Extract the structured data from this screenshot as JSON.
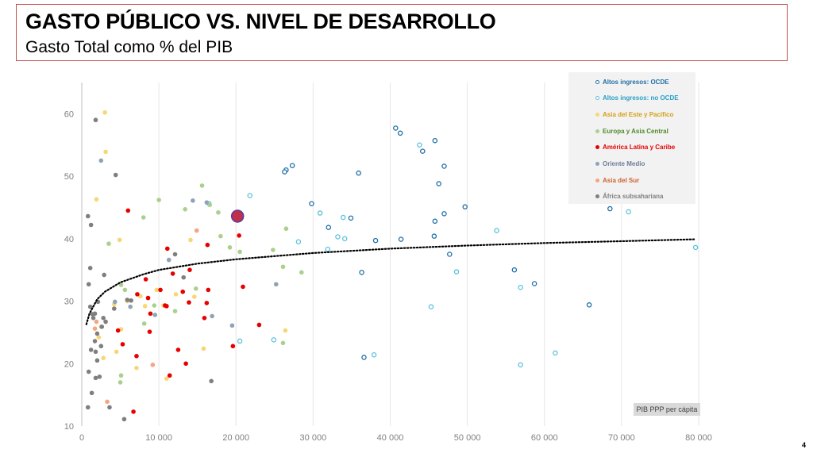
{
  "header": {
    "title": "GASTO PÚBLICO VS. NIVEL DE DESARROLLO",
    "subtitle": "Gasto Total como % del PIB"
  },
  "page_number": "4",
  "chart_data": {
    "type": "scatter",
    "title": "GASTO PÚBLICO VS. NIVEL DE DESARROLLO",
    "subtitle": "Gasto Total como % del PIB",
    "xlabel": "PIB PPP per cápita",
    "ylabel": "",
    "xlim": [
      0,
      80000
    ],
    "ylim": [
      10,
      65
    ],
    "x_ticks": [
      0,
      10000,
      20000,
      30000,
      40000,
      50000,
      60000,
      70000,
      80000
    ],
    "x_tick_labels": [
      "0",
      "10 000",
      "20 000",
      "30 000",
      "40 000",
      "50 000",
      "60 000",
      "70 000",
      "80 000"
    ],
    "y_ticks": [
      10,
      20,
      30,
      40,
      50,
      60
    ],
    "y_tick_labels": [
      "10",
      "20",
      "30",
      "40",
      "50",
      "60"
    ],
    "grid": {
      "vertical": true,
      "horizontal": false
    },
    "legend_position": "top-right",
    "trendline": {
      "type": "logarithmic",
      "style": "dotted",
      "points": [
        [
          600,
          26.3
        ],
        [
          1000,
          28.0
        ],
        [
          2000,
          30.3
        ],
        [
          3000,
          31.5
        ],
        [
          5000,
          33.0
        ],
        [
          8000,
          34.3
        ],
        [
          10000,
          35.0
        ],
        [
          15000,
          36.0
        ],
        [
          20000,
          36.7
        ],
        [
          30000,
          37.7
        ],
        [
          40000,
          38.4
        ],
        [
          50000,
          38.9
        ],
        [
          60000,
          39.3
        ],
        [
          70000,
          39.6
        ],
        [
          79500,
          39.9
        ]
      ]
    },
    "highlight": {
      "x": 20200,
      "y": 43.6,
      "color": "#c0304a"
    },
    "series": [
      {
        "name": "Altos ingresos: OCDE",
        "color": "#1f6fa8",
        "marker": "ring",
        "points": [
          [
            26500,
            51.0
          ],
          [
            26300,
            50.7
          ],
          [
            27300,
            51.7
          ],
          [
            29800,
            45.6
          ],
          [
            32000,
            41.8
          ],
          [
            34900,
            43.3
          ],
          [
            35900,
            50.5
          ],
          [
            36300,
            34.6
          ],
          [
            36600,
            21.0
          ],
          [
            38100,
            39.7
          ],
          [
            40700,
            57.7
          ],
          [
            41300,
            56.9
          ],
          [
            41400,
            39.9
          ],
          [
            44200,
            54.0
          ],
          [
            45800,
            55.7
          ],
          [
            46300,
            48.8
          ],
          [
            47000,
            51.6
          ],
          [
            45800,
            42.8
          ],
          [
            45700,
            40.4
          ],
          [
            47000,
            44.0
          ],
          [
            47700,
            37.5
          ],
          [
            49700,
            45.1
          ],
          [
            56100,
            35.0
          ],
          [
            58700,
            32.8
          ],
          [
            65800,
            29.4
          ],
          [
            68500,
            44.8
          ]
        ]
      },
      {
        "name": "Altos ingresos: no OCDE",
        "color": "#5bc0de",
        "marker": "ring",
        "points": [
          [
            16500,
            45.6
          ],
          [
            21800,
            46.9
          ],
          [
            20500,
            23.6
          ],
          [
            24900,
            23.8
          ],
          [
            28100,
            39.5
          ],
          [
            30900,
            44.1
          ],
          [
            31900,
            38.3
          ],
          [
            33200,
            40.3
          ],
          [
            33900,
            43.4
          ],
          [
            34100,
            40.0
          ],
          [
            37900,
            21.4
          ],
          [
            43800,
            55.0
          ],
          [
            45300,
            29.1
          ],
          [
            48600,
            34.7
          ],
          [
            53800,
            41.3
          ],
          [
            56900,
            32.2
          ],
          [
            56900,
            19.8
          ],
          [
            61400,
            21.7
          ],
          [
            70900,
            44.3
          ],
          [
            79600,
            38.6
          ]
        ]
      },
      {
        "name": "Asia del Este y Pacífico",
        "color": "#f7d774",
        "marker": "dot",
        "points": [
          [
            3000,
            60.2
          ],
          [
            3100,
            53.9
          ],
          [
            1900,
            46.3
          ],
          [
            2500,
            25.9
          ],
          [
            2200,
            24.2
          ],
          [
            2800,
            20.9
          ],
          [
            4200,
            29.5
          ],
          [
            5100,
            25.5
          ],
          [
            4500,
            21.9
          ],
          [
            4900,
            39.8
          ],
          [
            5900,
            30.0
          ],
          [
            7100,
            19.3
          ],
          [
            7600,
            30.8
          ],
          [
            8200,
            29.2
          ],
          [
            9700,
            31.8
          ],
          [
            10600,
            29.3
          ],
          [
            11000,
            17.6
          ],
          [
            12200,
            31.1
          ],
          [
            14100,
            39.8
          ],
          [
            14600,
            30.7
          ],
          [
            15800,
            22.4
          ],
          [
            26400,
            25.3
          ]
        ]
      },
      {
        "name": "Europa y Asia Central",
        "color": "#a9d18e",
        "marker": "dot",
        "points": [
          [
            3500,
            39.2
          ],
          [
            5100,
            32.6
          ],
          [
            5100,
            18.1
          ],
          [
            5600,
            31.8
          ],
          [
            5000,
            17.0
          ],
          [
            8000,
            43.4
          ],
          [
            8100,
            26.4
          ],
          [
            10000,
            46.2
          ],
          [
            9400,
            29.3
          ],
          [
            12100,
            28.4
          ],
          [
            13400,
            44.7
          ],
          [
            14800,
            32.0
          ],
          [
            15600,
            48.5
          ],
          [
            16600,
            45.4
          ],
          [
            17700,
            44.2
          ],
          [
            18000,
            40.4
          ],
          [
            19200,
            38.6
          ],
          [
            20500,
            37.9
          ],
          [
            24800,
            38.2
          ],
          [
            26100,
            35.5
          ],
          [
            26500,
            41.6
          ],
          [
            26100,
            23.3
          ],
          [
            28500,
            34.6
          ]
        ]
      },
      {
        "name": "América Latina y Caribe",
        "color": "#e60000",
        "marker": "dot",
        "points": [
          [
            6000,
            44.5
          ],
          [
            4700,
            25.3
          ],
          [
            5300,
            23.1
          ],
          [
            6700,
            12.3
          ],
          [
            7100,
            21.2
          ],
          [
            7200,
            31.1
          ],
          [
            8600,
            30.5
          ],
          [
            8300,
            33.5
          ],
          [
            8900,
            28.0
          ],
          [
            8800,
            25.1
          ],
          [
            10200,
            31.8
          ],
          [
            10800,
            29.3
          ],
          [
            11000,
            29.2
          ],
          [
            11100,
            38.4
          ],
          [
            11400,
            18.1
          ],
          [
            11800,
            34.4
          ],
          [
            12500,
            22.2
          ],
          [
            13100,
            31.5
          ],
          [
            13500,
            20.0
          ],
          [
            13900,
            29.8
          ],
          [
            14000,
            35.0
          ],
          [
            15900,
            27.3
          ],
          [
            16200,
            29.7
          ],
          [
            16400,
            31.8
          ],
          [
            16300,
            39.0
          ],
          [
            19600,
            22.8
          ],
          [
            20400,
            40.5
          ],
          [
            20900,
            32.3
          ],
          [
            23000,
            26.2
          ]
        ]
      },
      {
        "name": "Oriente Medio",
        "color": "#8fa3b8",
        "marker": "dot",
        "points": [
          [
            2500,
            52.5
          ],
          [
            4300,
            29.9
          ],
          [
            6300,
            29.1
          ],
          [
            9500,
            27.8
          ],
          [
            11300,
            36.6
          ],
          [
            14400,
            46.1
          ],
          [
            16200,
            45.8
          ],
          [
            16900,
            27.6
          ],
          [
            19500,
            26.1
          ],
          [
            25200,
            32.7
          ]
        ]
      },
      {
        "name": "Asia del Sur",
        "color": "#f4a582",
        "marker": "dot",
        "points": [
          [
            1700,
            25.6
          ],
          [
            1900,
            26.7
          ],
          [
            3300,
            13.9
          ],
          [
            9200,
            19.8
          ],
          [
            14900,
            41.3
          ]
        ]
      },
      {
        "name": "África subsahariana",
        "color": "#7f7f7f",
        "marker": "dot",
        "points": [
          [
            1800,
            59.0
          ],
          [
            1200,
            42.2
          ],
          [
            800,
            43.6
          ],
          [
            1100,
            35.3
          ],
          [
            900,
            32.7
          ],
          [
            2900,
            34.2
          ],
          [
            1100,
            29.1
          ],
          [
            1400,
            27.9
          ],
          [
            1500,
            27.3
          ],
          [
            1700,
            28.0
          ],
          [
            2100,
            29.9
          ],
          [
            2800,
            27.3
          ],
          [
            3100,
            26.7
          ],
          [
            2600,
            25.9
          ],
          [
            2000,
            24.8
          ],
          [
            1700,
            23.6
          ],
          [
            2500,
            22.8
          ],
          [
            1200,
            22.2
          ],
          [
            1800,
            21.9
          ],
          [
            2000,
            20.5
          ],
          [
            900,
            18.7
          ],
          [
            1800,
            17.7
          ],
          [
            2300,
            17.9
          ],
          [
            1300,
            15.3
          ],
          [
            800,
            13.0
          ],
          [
            3600,
            13.0
          ],
          [
            4200,
            28.8
          ],
          [
            4400,
            50.2
          ],
          [
            5500,
            11.1
          ],
          [
            6400,
            30.1
          ],
          [
            12100,
            37.5
          ],
          [
            13200,
            33.8
          ],
          [
            16800,
            17.2
          ],
          [
            5900,
            30.2
          ]
        ]
      }
    ]
  }
}
